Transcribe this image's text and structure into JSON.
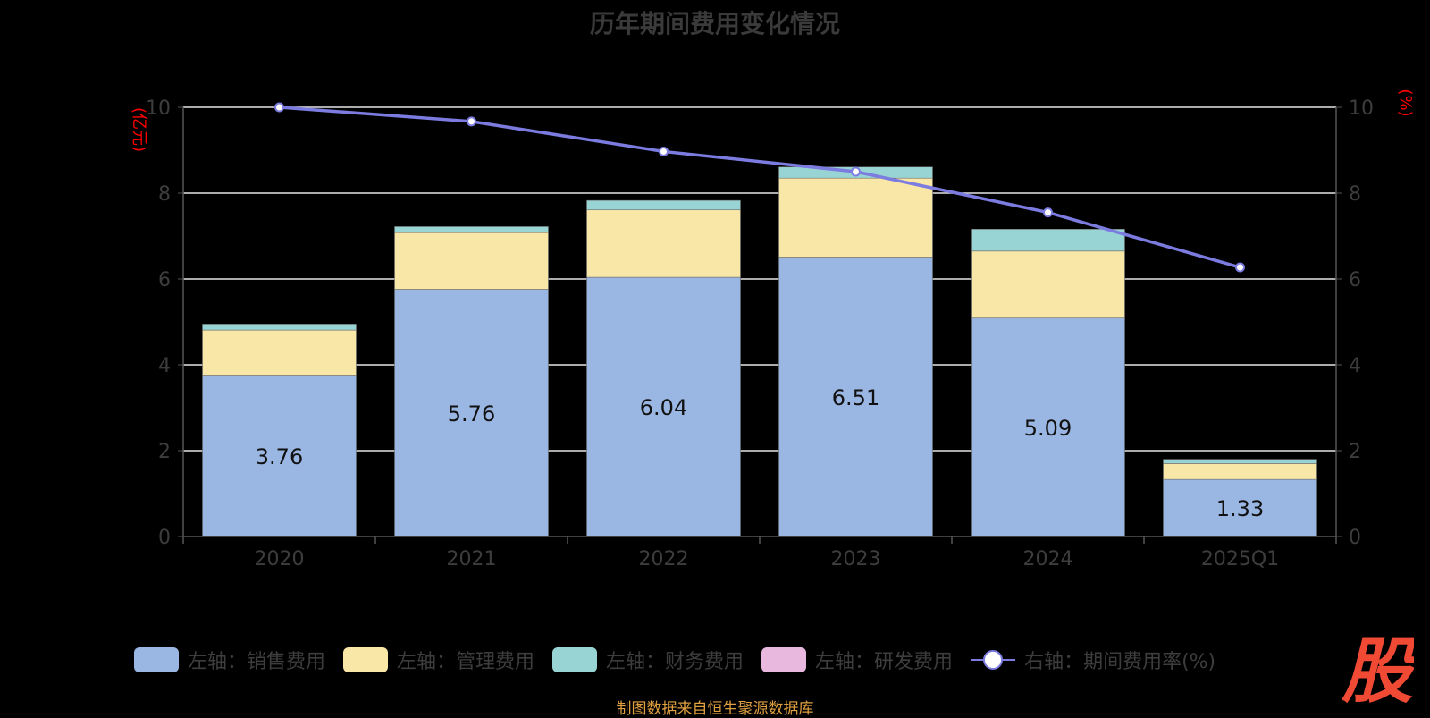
{
  "chart_data": {
    "type": "bar",
    "title": "历年期间费用变化情况",
    "categories": [
      "2020",
      "2021",
      "2022",
      "2023",
      "2024",
      "2025Q1"
    ],
    "series": [
      {
        "name": "左轴：销售费用",
        "axis": "left",
        "color": "#9ab6e2",
        "values": [
          3.76,
          5.76,
          6.04,
          6.51,
          5.09,
          1.33
        ],
        "labels": [
          "3.76",
          "5.76",
          "6.04",
          "6.51",
          "5.09",
          "1.33"
        ]
      },
      {
        "name": "左轴：管理费用",
        "axis": "left",
        "color": "#f8e7a6",
        "values": [
          1.05,
          1.32,
          1.57,
          1.84,
          1.56,
          0.37
        ]
      },
      {
        "name": "左轴：财务费用",
        "axis": "left",
        "color": "#98d4d4",
        "values": [
          0.14,
          0.14,
          0.22,
          0.26,
          0.51,
          0.1
        ]
      },
      {
        "name": "左轴：研发费用",
        "axis": "left",
        "color": "#e8b8de",
        "values": [
          0,
          0,
          0,
          0,
          0,
          0
        ]
      },
      {
        "name": "右轴：期间费用率(%)",
        "axis": "right",
        "type": "line",
        "color": "#7b7be0",
        "values": [
          10.0,
          9.67,
          8.97,
          8.5,
          7.55,
          6.27
        ]
      }
    ],
    "ylabel_left": "(亿元)",
    "ylabel_right": "(%)",
    "ylim_left": [
      0,
      10
    ],
    "ylim_right": [
      0,
      10
    ],
    "yticks_left": [
      "0",
      "2",
      "4",
      "6",
      "8",
      "10"
    ],
    "yticks_right": [
      "0",
      "2",
      "4",
      "6",
      "8",
      "10"
    ],
    "grid": true,
    "legend_position": "bottom"
  },
  "source": "制图数据来自恒生聚源数据库",
  "logo_text": "股",
  "colors": {
    "background": "#000000",
    "axis": "#555555",
    "grid": "#e6e6e6",
    "axis_label": "#ff0000"
  }
}
